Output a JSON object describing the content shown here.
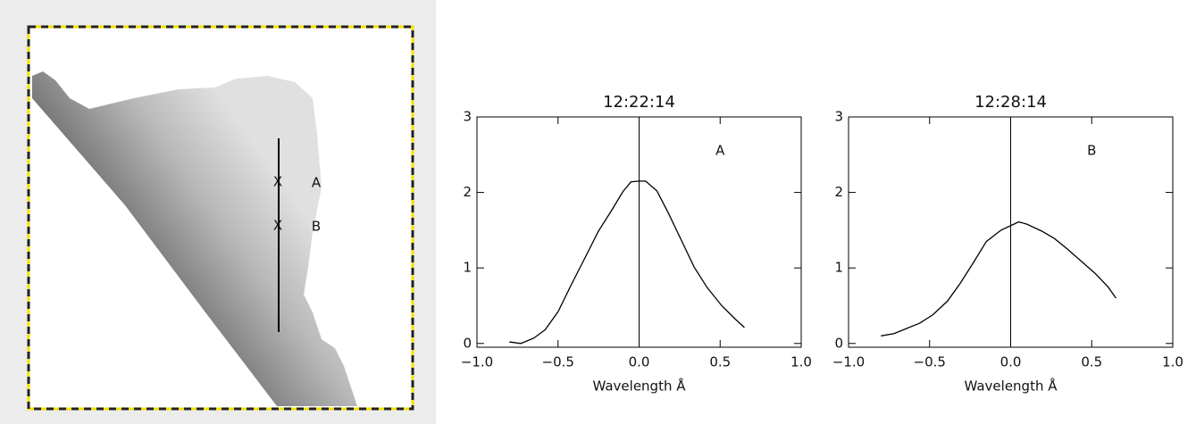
{
  "image": {
    "labels": [
      "A",
      "B"
    ]
  },
  "chart_data": [
    {
      "type": "line",
      "title": "12:22:14",
      "x_label": "Wavelength Å",
      "annotation": "A",
      "x": [
        -0.8,
        -0.73,
        -0.65,
        -0.58,
        -0.5,
        -0.42,
        -0.33,
        -0.25,
        -0.17,
        -0.1,
        -0.05,
        0.0,
        0.04,
        0.11,
        0.18,
        0.26,
        0.34,
        0.42,
        0.51,
        0.59,
        0.65
      ],
      "series": [
        {
          "name": "A",
          "color": "#000000",
          "values": [
            0.02,
            0.0,
            0.07,
            0.18,
            0.42,
            0.77,
            1.15,
            1.49,
            1.76,
            2.01,
            2.14,
            2.15,
            2.15,
            2.02,
            1.73,
            1.37,
            1.01,
            0.74,
            0.5,
            0.33,
            0.21
          ]
        }
      ],
      "vline": 0,
      "xlim": [
        -1,
        1
      ],
      "ylim": [
        -0.05,
        3
      ],
      "xticks": [
        {
          "value": -1,
          "label": "−1.0"
        },
        {
          "value": -0.5,
          "label": "−0.5"
        },
        {
          "value": 0,
          "label": "0.0"
        },
        0.5,
        {
          "value": 1,
          "label": "1.0"
        }
      ],
      "yticks": [
        0,
        1,
        2,
        3
      ]
    },
    {
      "type": "line",
      "title": "12:28:14",
      "x_label": "Wavelength Å",
      "annotation": "B",
      "x": [
        -0.8,
        -0.72,
        -0.64,
        -0.56,
        -0.48,
        -0.39,
        -0.31,
        -0.23,
        -0.15,
        -0.06,
        0.02,
        0.05,
        0.1,
        0.19,
        0.27,
        0.35,
        0.43,
        0.52,
        0.6,
        0.65
      ],
      "series": [
        {
          "name": "B",
          "color": "#000000",
          "values": [
            0.1,
            0.13,
            0.2,
            0.27,
            0.38,
            0.56,
            0.8,
            1.07,
            1.35,
            1.5,
            1.58,
            1.61,
            1.58,
            1.49,
            1.39,
            1.25,
            1.1,
            0.93,
            0.75,
            0.6
          ]
        }
      ],
      "vline": 0,
      "xlim": [
        -1,
        1
      ],
      "ylim": [
        -0.05,
        3
      ],
      "xticks": [
        {
          "value": -1,
          "label": "−1.0"
        },
        {
          "value": -0.5,
          "label": "−0.5"
        },
        {
          "value": 0,
          "label": "0.0"
        },
        0.5,
        {
          "value": 1,
          "label": "1.0"
        }
      ],
      "yticks": [
        0,
        1,
        2,
        3
      ]
    }
  ]
}
